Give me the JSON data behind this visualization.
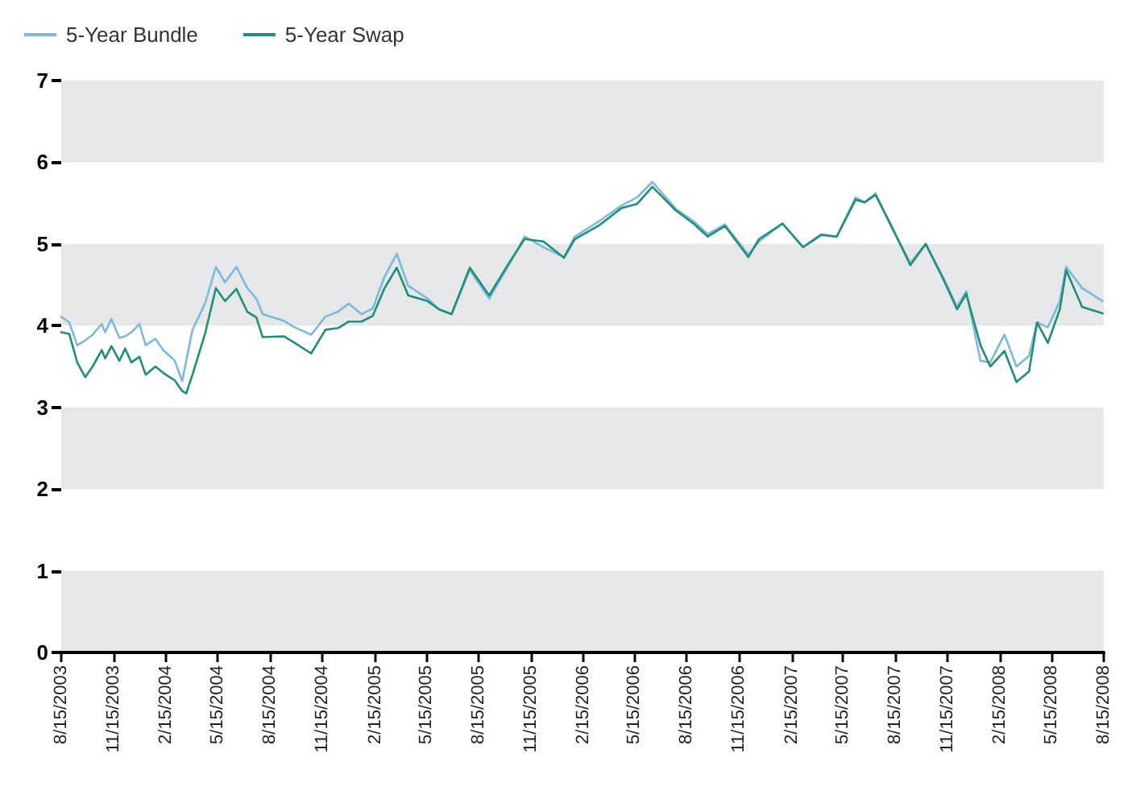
{
  "chart_data": {
    "type": "line",
    "x": [
      "2003-08-15",
      "2003-08-29",
      "2003-09-12",
      "2003-09-26",
      "2003-10-09",
      "2003-10-25",
      "2003-10-31",
      "2003-11-11",
      "2003-11-25",
      "2003-12-05",
      "2003-12-16",
      "2003-12-30",
      "2004-01-10",
      "2004-01-27",
      "2004-02-10",
      "2004-03-01",
      "2004-03-14",
      "2004-03-21",
      "2004-04-01",
      "2004-04-23",
      "2004-05-12",
      "2004-05-28",
      "2004-06-17",
      "2004-07-06",
      "2004-07-22",
      "2004-08-02",
      "2004-09-08",
      "2004-09-27",
      "2004-10-26",
      "2004-11-20",
      "2004-12-12",
      "2004-12-31",
      "2005-01-22",
      "2005-02-11",
      "2005-03-03",
      "2005-03-25",
      "2005-04-14",
      "2005-05-18",
      "2005-06-07",
      "2005-06-29",
      "2005-07-31",
      "2005-09-03",
      "2005-10-08",
      "2005-11-04",
      "2005-12-07",
      "2006-01-12",
      "2006-01-31",
      "2006-03-15",
      "2006-04-23",
      "2006-05-20",
      "2006-06-16",
      "2006-07-27",
      "2006-08-27",
      "2006-09-21",
      "2006-10-21",
      "2006-12-01",
      "2006-12-20",
      "2007-01-30",
      "2007-03-07",
      "2007-04-08",
      "2007-05-05",
      "2007-06-07",
      "2007-06-23",
      "2007-07-12",
      "2007-08-09",
      "2007-09-11",
      "2007-10-08",
      "2007-11-07",
      "2007-12-02",
      "2007-12-18",
      "2008-01-12",
      "2008-01-29",
      "2008-02-23",
      "2008-03-15",
      "2008-04-06",
      "2008-04-20",
      "2008-05-09",
      "2008-05-30",
      "2008-06-10",
      "2008-07-08",
      "2008-08-13"
    ],
    "series": [
      {
        "name": "5-Year Bundle",
        "color": "#7db9dd",
        "values": [
          4.11,
          4.04,
          3.76,
          3.82,
          3.89,
          4.02,
          3.92,
          4.08,
          3.85,
          3.87,
          3.92,
          4.02,
          3.76,
          3.84,
          3.7,
          3.57,
          3.32,
          3.57,
          3.95,
          4.27,
          4.72,
          4.53,
          4.72,
          4.46,
          4.33,
          4.14,
          4.06,
          3.98,
          3.89,
          4.11,
          4.17,
          4.27,
          4.14,
          4.21,
          4.59,
          4.88,
          4.49,
          4.33,
          4.2,
          4.14,
          4.68,
          4.33,
          4.75,
          5.09,
          4.96,
          4.84,
          5.09,
          5.28,
          5.47,
          5.57,
          5.76,
          5.43,
          5.28,
          5.12,
          5.24,
          4.87,
          5.03,
          5.25,
          4.96,
          5.12,
          5.09,
          5.57,
          5.51,
          5.62,
          5.2,
          4.77,
          5.0,
          4.6,
          4.23,
          4.42,
          3.57,
          3.55,
          3.89,
          3.5,
          3.63,
          4.04,
          3.98,
          4.3,
          4.72,
          4.46,
          4.3
        ]
      },
      {
        "name": "5-Year Swap",
        "color": "#1f8f78",
        "values": [
          3.92,
          3.9,
          3.55,
          3.37,
          3.5,
          3.7,
          3.6,
          3.75,
          3.57,
          3.72,
          3.55,
          3.62,
          3.4,
          3.5,
          3.42,
          3.33,
          3.2,
          3.17,
          3.4,
          3.9,
          4.46,
          4.3,
          4.45,
          4.17,
          4.1,
          3.86,
          3.87,
          3.79,
          3.66,
          3.95,
          3.97,
          4.05,
          4.05,
          4.12,
          4.45,
          4.71,
          4.37,
          4.3,
          4.2,
          4.14,
          4.71,
          4.37,
          4.77,
          5.06,
          5.03,
          4.83,
          5.06,
          5.23,
          5.44,
          5.49,
          5.7,
          5.41,
          5.25,
          5.09,
          5.22,
          4.84,
          5.06,
          5.25,
          4.96,
          5.11,
          5.09,
          5.54,
          5.51,
          5.6,
          5.22,
          4.74,
          5.0,
          4.58,
          4.2,
          4.39,
          3.76,
          3.5,
          3.69,
          3.31,
          3.44,
          4.04,
          3.79,
          4.2,
          4.68,
          4.23,
          4.15
        ]
      }
    ],
    "xlim": [
      "2003-08-15",
      "2008-08-15"
    ],
    "xticks": [
      {
        "value": "2003-08-15",
        "label": "8/15/2003"
      },
      {
        "value": "2003-11-15",
        "label": "11/15/2003"
      },
      {
        "value": "2004-02-15",
        "label": "2/15/2004"
      },
      {
        "value": "2004-05-15",
        "label": "5/15/2004"
      },
      {
        "value": "2004-08-15",
        "label": "8/15/2004"
      },
      {
        "value": "2004-11-15",
        "label": "11/15/2004"
      },
      {
        "value": "2005-02-15",
        "label": "2/15/2005"
      },
      {
        "value": "2005-05-15",
        "label": "5/15/2005"
      },
      {
        "value": "2005-08-15",
        "label": "8/15/2005"
      },
      {
        "value": "2005-11-15",
        "label": "11/15/2005"
      },
      {
        "value": "2006-02-15",
        "label": "2/15/2006"
      },
      {
        "value": "2006-05-15",
        "label": "5/15/2006"
      },
      {
        "value": "2006-08-15",
        "label": "8/15/2006"
      },
      {
        "value": "2006-11-15",
        "label": "11/15/2006"
      },
      {
        "value": "2007-02-15",
        "label": "2/15/2007"
      },
      {
        "value": "2007-05-15",
        "label": "5/15/2007"
      },
      {
        "value": "2007-08-15",
        "label": "8/15/2007"
      },
      {
        "value": "2007-11-15",
        "label": "11/15/2007"
      },
      {
        "value": "2008-02-15",
        "label": "2/15/2008"
      },
      {
        "value": "2008-05-15",
        "label": "5/15/2008"
      },
      {
        "value": "2008-08-15",
        "label": "8/15/2008"
      }
    ],
    "ylim": [
      0,
      7
    ],
    "yticks": [
      0,
      1,
      2,
      3,
      4,
      5,
      6,
      7
    ],
    "bands": [
      {
        "axis": "y",
        "from": 0,
        "to": 1,
        "color": "#e6e7e8"
      },
      {
        "axis": "y",
        "from": 2,
        "to": 3,
        "color": "#e6e7e8"
      },
      {
        "axis": "y",
        "from": 4,
        "to": 5,
        "color": "#e6e7e8"
      },
      {
        "axis": "y",
        "from": 6,
        "to": 7,
        "color": "#e6e7e8"
      }
    ],
    "grid": false,
    "legend": "top left",
    "marker": "none",
    "line_style": "solid"
  }
}
